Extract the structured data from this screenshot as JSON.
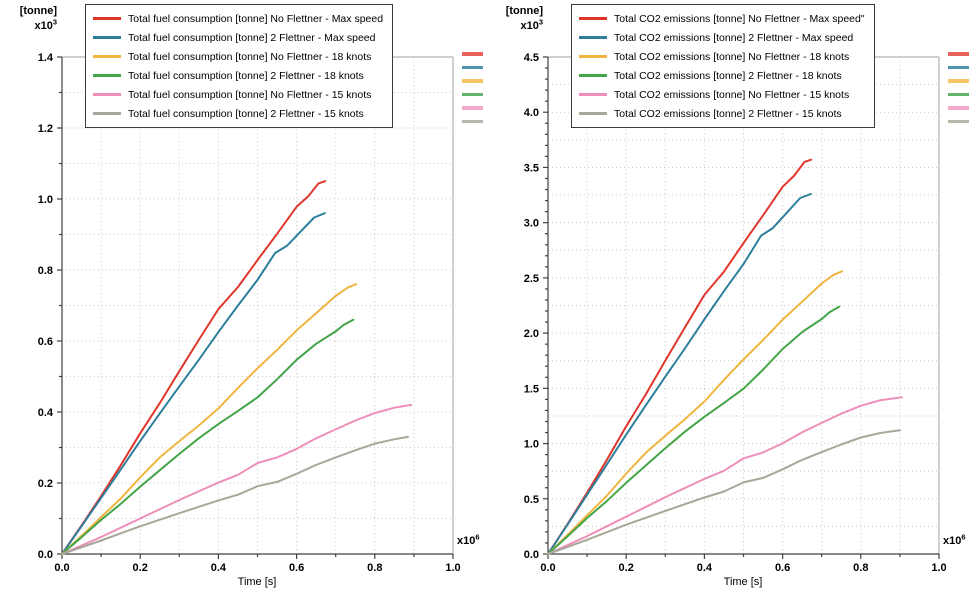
{
  "chart_data": [
    {
      "type": "line",
      "y_unit": "[tonne]",
      "y_mult_base": "x10",
      "y_mult_exp": "3",
      "x_mult_base": "x10",
      "x_mult_exp": "6",
      "x_label": "Time [s]",
      "x_axis": {
        "min": 0.0,
        "max": 1.0,
        "major": 0.2,
        "minor": 0.1,
        "grid": 0.1,
        "tick_labels": [
          "0.0",
          "0.2",
          "0.4",
          "0.6",
          "0.8",
          "1.0"
        ]
      },
      "y_axis": {
        "min": 0.0,
        "max": 1.4,
        "major": 0.2,
        "minor": 0.1,
        "grid": 0.1,
        "tick_labels": [
          "0.0",
          "0.2",
          "0.4",
          "0.6",
          "0.8",
          "1.0",
          "1.2",
          "1.4"
        ]
      },
      "legend_position": "top",
      "grid": "dotted",
      "series": [
        {
          "name": "Total fuel consumption [tonne] No Flettner - Max speed",
          "color": "#e0362c",
          "marker_color": "#e8635c",
          "points": [
            [
              0,
              0
            ],
            [
              0.05,
              0.08
            ],
            [
              0.1,
              0.163
            ],
            [
              0.15,
              0.25
            ],
            [
              0.2,
              0.34
            ],
            [
              0.25,
              0.425
            ],
            [
              0.3,
              0.515
            ],
            [
              0.35,
              0.603
            ],
            [
              0.4,
              0.69
            ],
            [
              0.45,
              0.752
            ],
            [
              0.5,
              0.828
            ],
            [
              0.55,
              0.902
            ],
            [
              0.6,
              0.978
            ],
            [
              0.63,
              1.008
            ],
            [
              0.656,
              1.044
            ],
            [
              0.673,
              1.05
            ]
          ]
        },
        {
          "name": "Total fuel consumption [tonne] 2 Flettner - Max speed",
          "color": "#2e7f9c",
          "marker_color": "#4f93ad",
          "points": [
            [
              0,
              0
            ],
            [
              0.05,
              0.078
            ],
            [
              0.1,
              0.158
            ],
            [
              0.15,
              0.238
            ],
            [
              0.2,
              0.318
            ],
            [
              0.25,
              0.396
            ],
            [
              0.3,
              0.472
            ],
            [
              0.35,
              0.547
            ],
            [
              0.4,
              0.625
            ],
            [
              0.45,
              0.7
            ],
            [
              0.5,
              0.772
            ],
            [
              0.545,
              0.848
            ],
            [
              0.575,
              0.868
            ],
            [
              0.61,
              0.908
            ],
            [
              0.645,
              0.948
            ],
            [
              0.672,
              0.96
            ]
          ]
        },
        {
          "name": "Total fuel consumption [tonne] No Flettner - 18 knots",
          "color": "#f0b53f",
          "marker_color": "#f4c465",
          "points": [
            [
              0,
              0
            ],
            [
              0.05,
              0.051
            ],
            [
              0.1,
              0.104
            ],
            [
              0.15,
              0.156
            ],
            [
              0.2,
              0.216
            ],
            [
              0.25,
              0.272
            ],
            [
              0.3,
              0.318
            ],
            [
              0.35,
              0.362
            ],
            [
              0.4,
              0.41
            ],
            [
              0.45,
              0.468
            ],
            [
              0.5,
              0.523
            ],
            [
              0.55,
              0.575
            ],
            [
              0.6,
              0.63
            ],
            [
              0.65,
              0.678
            ],
            [
              0.7,
              0.727
            ],
            [
              0.73,
              0.75
            ],
            [
              0.752,
              0.76
            ]
          ]
        },
        {
          "name": "Total fuel consumption [tonne] 2 Flettner - 18 knots",
          "color": "#43a547",
          "marker_color": "#63b56e",
          "points": [
            [
              0,
              0
            ],
            [
              0.05,
              0.047
            ],
            [
              0.1,
              0.096
            ],
            [
              0.15,
              0.141
            ],
            [
              0.2,
              0.19
            ],
            [
              0.25,
              0.236
            ],
            [
              0.3,
              0.282
            ],
            [
              0.35,
              0.326
            ],
            [
              0.4,
              0.366
            ],
            [
              0.45,
              0.403
            ],
            [
              0.5,
              0.441
            ],
            [
              0.55,
              0.492
            ],
            [
              0.6,
              0.547
            ],
            [
              0.65,
              0.592
            ],
            [
              0.7,
              0.627
            ],
            [
              0.72,
              0.645
            ],
            [
              0.745,
              0.66
            ]
          ]
        },
        {
          "name": "Total fuel consumption [tonne] No Flettner - 15 knots",
          "color": "#ee8fba",
          "marker_color": "#f3aacb",
          "points": [
            [
              0,
              0
            ],
            [
              0.1,
              0.048
            ],
            [
              0.2,
              0.1
            ],
            [
              0.3,
              0.152
            ],
            [
              0.4,
              0.201
            ],
            [
              0.45,
              0.223
            ],
            [
              0.5,
              0.256
            ],
            [
              0.55,
              0.272
            ],
            [
              0.6,
              0.296
            ],
            [
              0.65,
              0.326
            ],
            [
              0.7,
              0.351
            ],
            [
              0.75,
              0.376
            ],
            [
              0.8,
              0.397
            ],
            [
              0.85,
              0.412
            ],
            [
              0.893,
              0.42
            ]
          ]
        },
        {
          "name": "Total fuel consumption [tonne] 2 Flettner - 15 knots",
          "color": "#a8a79a",
          "marker_color": "#b8b8aa",
          "points": [
            [
              0,
              0
            ],
            [
              0.1,
              0.038
            ],
            [
              0.2,
              0.078
            ],
            [
              0.3,
              0.115
            ],
            [
              0.4,
              0.151
            ],
            [
              0.45,
              0.167
            ],
            [
              0.5,
              0.191
            ],
            [
              0.55,
              0.203
            ],
            [
              0.6,
              0.226
            ],
            [
              0.65,
              0.251
            ],
            [
              0.7,
              0.272
            ],
            [
              0.75,
              0.292
            ],
            [
              0.8,
              0.311
            ],
            [
              0.85,
              0.323
            ],
            [
              0.885,
              0.33
            ]
          ]
        }
      ]
    },
    {
      "type": "line",
      "y_unit": "[tonne]",
      "y_mult_base": "x10",
      "y_mult_exp": "3",
      "x_mult_base": "x10",
      "x_mult_exp": "6",
      "x_label": "Time [s]",
      "x_axis": {
        "min": 0.0,
        "max": 1.0,
        "major": 0.2,
        "minor": 0.1,
        "grid": 0.1,
        "tick_labels": [
          "0.0",
          "0.2",
          "0.4",
          "0.6",
          "0.8",
          "1.0"
        ]
      },
      "y_axis": {
        "min": 0.0,
        "max": 4.5,
        "major": 0.5,
        "minor": 0.1,
        "grid": 0.25,
        "tick_labels": [
          "0.0",
          "0.5",
          "1.0",
          "1.5",
          "2.0",
          "2.5",
          "3.0",
          "3.5",
          "4.0",
          "4.5"
        ]
      },
      "legend_position": "top",
      "grid": "dotted",
      "series": [
        {
          "name": "Total CO2 emissions [tonne] No Flettner - Max speed\"",
          "color": "#e0362c",
          "marker_color": "#e8635c",
          "points": [
            [
              0,
              0
            ],
            [
              0.05,
              0.27
            ],
            [
              0.1,
              0.555
            ],
            [
              0.15,
              0.85
            ],
            [
              0.2,
              1.156
            ],
            [
              0.25,
              1.445
            ],
            [
              0.3,
              1.751
            ],
            [
              0.35,
              2.05
            ],
            [
              0.4,
              2.346
            ],
            [
              0.45,
              2.557
            ],
            [
              0.5,
              2.815
            ],
            [
              0.55,
              3.067
            ],
            [
              0.6,
              3.325
            ],
            [
              0.63,
              3.427
            ],
            [
              0.656,
              3.55
            ],
            [
              0.673,
              3.57
            ]
          ]
        },
        {
          "name": "Total CO2 emissions [tonne] 2 Flettner - Max speed",
          "color": "#2e7f9c",
          "marker_color": "#4f93ad",
          "points": [
            [
              0,
              0
            ],
            [
              0.05,
              0.265
            ],
            [
              0.1,
              0.537
            ],
            [
              0.15,
              0.809
            ],
            [
              0.2,
              1.081
            ],
            [
              0.25,
              1.346
            ],
            [
              0.3,
              1.605
            ],
            [
              0.35,
              1.86
            ],
            [
              0.4,
              2.125
            ],
            [
              0.45,
              2.38
            ],
            [
              0.5,
              2.625
            ],
            [
              0.545,
              2.883
            ],
            [
              0.575,
              2.951
            ],
            [
              0.61,
              3.087
            ],
            [
              0.645,
              3.223
            ],
            [
              0.672,
              3.26
            ]
          ]
        },
        {
          "name": "Total CO2 emissions [tonne]  No Flettner - 18 knots",
          "color": "#f0b53f",
          "marker_color": "#f4c465",
          "points": [
            [
              0,
              0
            ],
            [
              0.05,
              0.172
            ],
            [
              0.1,
              0.35
            ],
            [
              0.15,
              0.526
            ],
            [
              0.2,
              0.728
            ],
            [
              0.25,
              0.916
            ],
            [
              0.3,
              1.071
            ],
            [
              0.35,
              1.22
            ],
            [
              0.4,
              1.381
            ],
            [
              0.45,
              1.577
            ],
            [
              0.5,
              1.762
            ],
            [
              0.55,
              1.937
            ],
            [
              0.6,
              2.122
            ],
            [
              0.65,
              2.284
            ],
            [
              0.7,
              2.449
            ],
            [
              0.73,
              2.527
            ],
            [
              0.752,
              2.56
            ]
          ]
        },
        {
          "name": "Total CO2 emissions [tonne] 2 Flettner - 18 knots",
          "color": "#43a547",
          "marker_color": "#63b56e",
          "points": [
            [
              0,
              0
            ],
            [
              0.05,
              0.159
            ],
            [
              0.1,
              0.326
            ],
            [
              0.15,
              0.478
            ],
            [
              0.2,
              0.645
            ],
            [
              0.25,
              0.801
            ],
            [
              0.3,
              0.957
            ],
            [
              0.35,
              1.106
            ],
            [
              0.4,
              1.242
            ],
            [
              0.45,
              1.368
            ],
            [
              0.5,
              1.497
            ],
            [
              0.55,
              1.67
            ],
            [
              0.6,
              1.856
            ],
            [
              0.65,
              2.009
            ],
            [
              0.7,
              2.128
            ],
            [
              0.72,
              2.189
            ],
            [
              0.745,
              2.24
            ]
          ]
        },
        {
          "name": "Total CO2 emissions [tonne]  No Flettner - 15 knots",
          "color": "#ee8fba",
          "marker_color": "#f3aacb",
          "points": [
            [
              0,
              0
            ],
            [
              0.1,
              0.162
            ],
            [
              0.2,
              0.338
            ],
            [
              0.3,
              0.514
            ],
            [
              0.4,
              0.68
            ],
            [
              0.45,
              0.754
            ],
            [
              0.5,
              0.866
            ],
            [
              0.55,
              0.92
            ],
            [
              0.6,
              1.001
            ],
            [
              0.65,
              1.102
            ],
            [
              0.7,
              1.187
            ],
            [
              0.75,
              1.271
            ],
            [
              0.8,
              1.342
            ],
            [
              0.85,
              1.393
            ],
            [
              0.905,
              1.42
            ]
          ]
        },
        {
          "name": "Total CO2 emissions [tonne] 2 Flettner - 15 knots",
          "color": "#a8a79a",
          "marker_color": "#b8b8aa",
          "points": [
            [
              0,
              0
            ],
            [
              0.1,
              0.129
            ],
            [
              0.2,
              0.265
            ],
            [
              0.3,
              0.39
            ],
            [
              0.4,
              0.512
            ],
            [
              0.45,
              0.566
            ],
            [
              0.5,
              0.648
            ],
            [
              0.55,
              0.689
            ],
            [
              0.6,
              0.767
            ],
            [
              0.65,
              0.852
            ],
            [
              0.7,
              0.923
            ],
            [
              0.75,
              0.991
            ],
            [
              0.8,
              1.055
            ],
            [
              0.85,
              1.096
            ],
            [
              0.9,
              1.12
            ]
          ]
        }
      ]
    }
  ],
  "colors": {
    "axis": "#404040",
    "grid": "#c9c9c9",
    "plot_border": "#b4b4b4",
    "background": "#ffffff",
    "legend_border": "#3a3a3a",
    "text": "#000000"
  }
}
